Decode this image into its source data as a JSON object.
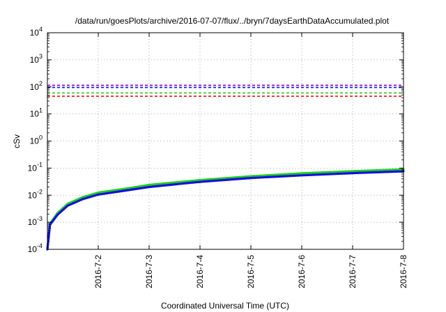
{
  "chart_data": {
    "type": "line",
    "title": "/data/run/goesPlots/archive/2016-07-07/flux/../bryn/7daysEarthDataAccumulated.plot",
    "xlabel": "Coordinated Universal Time (UTC)",
    "ylabel": "cSv",
    "y_scale": "log",
    "ylim": [
      0.0001,
      10000
    ],
    "xlim": [
      "2016-07-01",
      "2016-07-08"
    ],
    "y_ticks": [
      {
        "value": 0.0001,
        "base": "10",
        "exp": "-4"
      },
      {
        "value": 0.001,
        "base": "10",
        "exp": "-3"
      },
      {
        "value": 0.01,
        "base": "10",
        "exp": "-2"
      },
      {
        "value": 0.1,
        "base": "10",
        "exp": "-1"
      },
      {
        "value": 1,
        "base": "10",
        "exp": "0"
      },
      {
        "value": 10,
        "base": "10",
        "exp": "1"
      },
      {
        "value": 100,
        "base": "10",
        "exp": "2"
      },
      {
        "value": 1000,
        "base": "10",
        "exp": "3"
      },
      {
        "value": 10000,
        "base": "10",
        "exp": "4"
      }
    ],
    "x_ticks": [
      "2016-7-2",
      "2016-7-3",
      "2016-7-4",
      "2016-7-5",
      "2016-7-6",
      "2016-7-7",
      "2016-7-8"
    ],
    "grid": true,
    "series": [
      {
        "color": "#22cc22",
        "style": "solid",
        "x": [
          "2016-07-01T00:00",
          "2016-07-01T01:12",
          "2016-07-01T04:48",
          "2016-07-01T09:36",
          "2016-07-01T16:48",
          "2016-07-02T00:00",
          "2016-07-02T12:00",
          "2016-07-03T00:00",
          "2016-07-04T00:00",
          "2016-07-05T00:00",
          "2016-07-06T00:00",
          "2016-07-07T00:00",
          "2016-07-08T00:00"
        ],
        "y": [
          0.0001,
          0.0009,
          0.0022,
          0.0048,
          0.0085,
          0.0125,
          0.017,
          0.024,
          0.036,
          0.05,
          0.064,
          0.077,
          0.09
        ]
      },
      {
        "color": "#1111dd",
        "style": "solid",
        "x": [
          "2016-07-01T00:00",
          "2016-07-01T01:12",
          "2016-07-01T04:48",
          "2016-07-01T09:36",
          "2016-07-01T16:48",
          "2016-07-02T00:00",
          "2016-07-02T12:00",
          "2016-07-03T00:00",
          "2016-07-04T00:00",
          "2016-07-05T00:00",
          "2016-07-06T00:00",
          "2016-07-07T00:00",
          "2016-07-08T00:00"
        ],
        "y": [
          0.0001,
          0.0008,
          0.0019,
          0.0041,
          0.0072,
          0.0105,
          0.0145,
          0.02,
          0.031,
          0.043,
          0.054,
          0.065,
          0.076
        ]
      },
      {
        "color": "#8800cc",
        "style": "dashed",
        "x": [
          "2016-07-01",
          "2016-07-08"
        ],
        "y": [
          115,
          115
        ]
      },
      {
        "color": "#1111dd",
        "style": "dashed",
        "x": [
          "2016-07-01",
          "2016-07-08"
        ],
        "y": [
          95,
          95
        ]
      },
      {
        "color": "#22cc22",
        "style": "dashed",
        "x": [
          "2016-07-01",
          "2016-07-08"
        ],
        "y": [
          60,
          60
        ]
      },
      {
        "color": "#ee1111",
        "style": "dashed",
        "x": [
          "2016-07-01",
          "2016-07-08"
        ],
        "y": [
          45,
          45
        ]
      }
    ]
  }
}
